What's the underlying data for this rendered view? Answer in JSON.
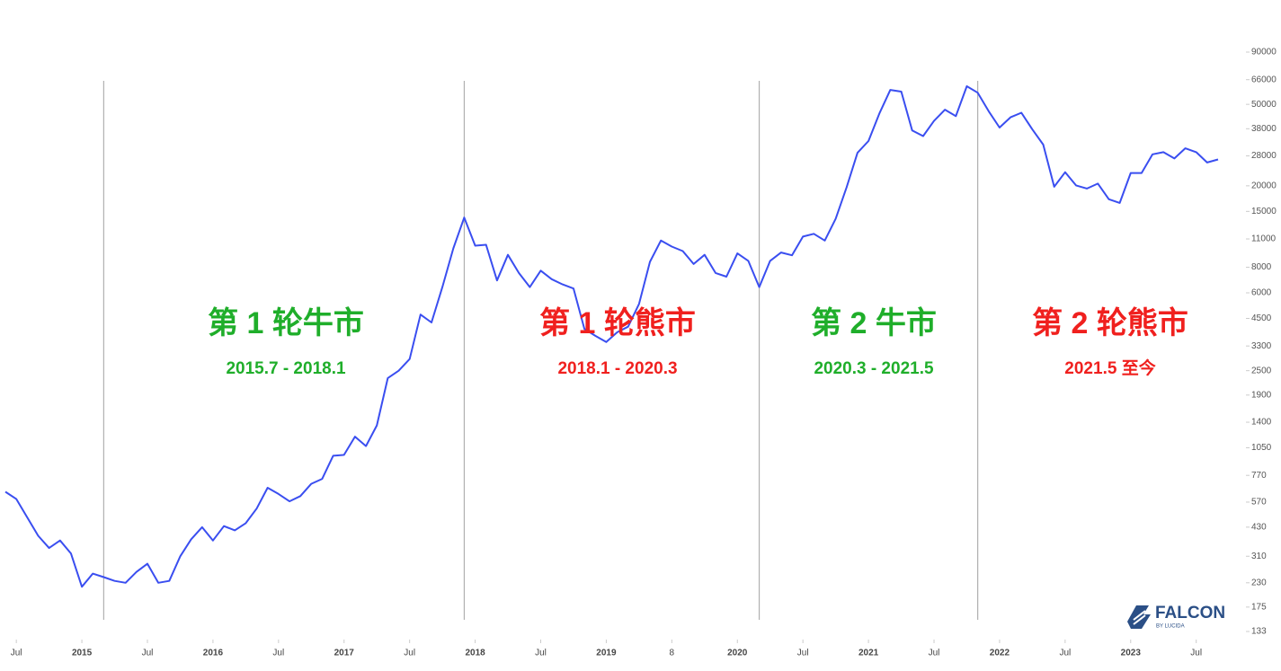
{
  "chart_data": {
    "type": "line",
    "log_scale": true,
    "color": "#3a4ef0",
    "xlim": [
      "2014-06",
      "2023-09"
    ],
    "ylim": [
      133,
      90000
    ],
    "yticks": [
      133,
      175,
      230,
      310,
      430,
      570,
      770,
      1050,
      1400,
      1900,
      2500,
      3300,
      4500,
      6000,
      8000,
      11000,
      15000,
      20000,
      28000,
      38000,
      50000,
      66000,
      90000
    ],
    "xticks": [
      {
        "value": "2014-07",
        "label": "Jul"
      },
      {
        "value": "2015-01",
        "label": "2015"
      },
      {
        "value": "2015-07",
        "label": "Jul"
      },
      {
        "value": "2016-01",
        "label": "2016"
      },
      {
        "value": "2016-07",
        "label": "Jul"
      },
      {
        "value": "2017-01",
        "label": "2017"
      },
      {
        "value": "2017-07",
        "label": "Jul"
      },
      {
        "value": "2018-01",
        "label": "2018"
      },
      {
        "value": "2018-07",
        "label": "Jul"
      },
      {
        "value": "2019-01",
        "label": "2019"
      },
      {
        "value": "2019-07",
        "label": "8"
      },
      {
        "value": "2020-01",
        "label": "2020"
      },
      {
        "value": "2020-07",
        "label": "Jul"
      },
      {
        "value": "2021-01",
        "label": "2021"
      },
      {
        "value": "2021-07",
        "label": "Jul"
      },
      {
        "value": "2022-01",
        "label": "2022"
      },
      {
        "value": "2022-07",
        "label": "Jul"
      },
      {
        "value": "2023-01",
        "label": "2023"
      },
      {
        "value": "2023-07",
        "label": "Jul"
      }
    ],
    "x": [
      "2014-06",
      "2014-07",
      "2014-08",
      "2014-09",
      "2014-10",
      "2014-11",
      "2014-12",
      "2015-01",
      "2015-02",
      "2015-03",
      "2015-04",
      "2015-05",
      "2015-06",
      "2015-07",
      "2015-08",
      "2015-09",
      "2015-10",
      "2015-11",
      "2015-12",
      "2016-01",
      "2016-02",
      "2016-03",
      "2016-04",
      "2016-05",
      "2016-06",
      "2016-07",
      "2016-08",
      "2016-09",
      "2016-10",
      "2016-11",
      "2016-12",
      "2017-01",
      "2017-02",
      "2017-03",
      "2017-04",
      "2017-05",
      "2017-06",
      "2017-07",
      "2017-08",
      "2017-09",
      "2017-10",
      "2017-11",
      "2017-12",
      "2018-01",
      "2018-02",
      "2018-03",
      "2018-04",
      "2018-05",
      "2018-06",
      "2018-07",
      "2018-08",
      "2018-09",
      "2018-10",
      "2018-11",
      "2018-12",
      "2019-01",
      "2019-02",
      "2019-03",
      "2019-04",
      "2019-05",
      "2019-06",
      "2019-07",
      "2019-08",
      "2019-09",
      "2019-10",
      "2019-11",
      "2019-12",
      "2020-01",
      "2020-02",
      "2020-03",
      "2020-04",
      "2020-05",
      "2020-06",
      "2020-07",
      "2020-08",
      "2020-09",
      "2020-10",
      "2020-11",
      "2020-12",
      "2021-01",
      "2021-02",
      "2021-03",
      "2021-04",
      "2021-05",
      "2021-06",
      "2021-07",
      "2021-08",
      "2021-09",
      "2021-10",
      "2021-11",
      "2021-12",
      "2022-01",
      "2022-02",
      "2022-03",
      "2022-04",
      "2022-05",
      "2022-06",
      "2022-07",
      "2022-08",
      "2022-09",
      "2022-10",
      "2022-11",
      "2022-12",
      "2023-01",
      "2023-02",
      "2023-03",
      "2023-04",
      "2023-05",
      "2023-06",
      "2023-07",
      "2023-08",
      "2023-09"
    ],
    "values": [
      640,
      590,
      480,
      390,
      340,
      370,
      320,
      220,
      255,
      245,
      235,
      230,
      260,
      285,
      230,
      235,
      310,
      375,
      430,
      370,
      435,
      415,
      450,
      530,
      670,
      625,
      575,
      610,
      700,
      740,
      960,
      970,
      1190,
      1070,
      1350,
      2300,
      2500,
      2850,
      4700,
      4300,
      6400,
      9900,
      14000,
      10200,
      10300,
      6900,
      9200,
      7500,
      6400,
      7700,
      7000,
      6600,
      6300,
      4000,
      3700,
      3450,
      3850,
      4100,
      5300,
      8500,
      10800,
      10100,
      9600,
      8300,
      9200,
      7500,
      7200,
      9350,
      8600,
      6400,
      8600,
      9450,
      9150,
      11300,
      11650,
      10800,
      13800,
      19700,
      29000,
      33100,
      45200,
      58800,
      57700,
      37300,
      35000,
      41500,
      47100,
      43800,
      61300,
      57000,
      46300,
      38500,
      43200,
      45500,
      37700,
      31800,
      19800,
      23300,
      20100,
      19400,
      20500,
      17200,
      16500,
      23100,
      23100,
      28500,
      29200,
      27200,
      30500,
      29200,
      26000,
      26900
    ],
    "dividers": [
      "2015-03",
      "2017-12",
      "2020-03",
      "2021-11"
    ],
    "annotations": [
      {
        "title": "第 1 轮牛市",
        "subtitle": "2015.7 - 2018.1",
        "color": "#1fae2a"
      },
      {
        "title": "第 1 轮熊市",
        "subtitle": "2018.1 - 2020.3",
        "color": "#f0201e"
      },
      {
        "title": "第 2 牛市",
        "subtitle": "2020.3 - 2021.5",
        "color": "#1fae2a"
      },
      {
        "title": "第 2 轮熊市",
        "subtitle": "2021.5 至今",
        "color": "#f0201e"
      }
    ]
  },
  "logo": {
    "name": "FALCON",
    "sub": "BY LUCIDA"
  }
}
